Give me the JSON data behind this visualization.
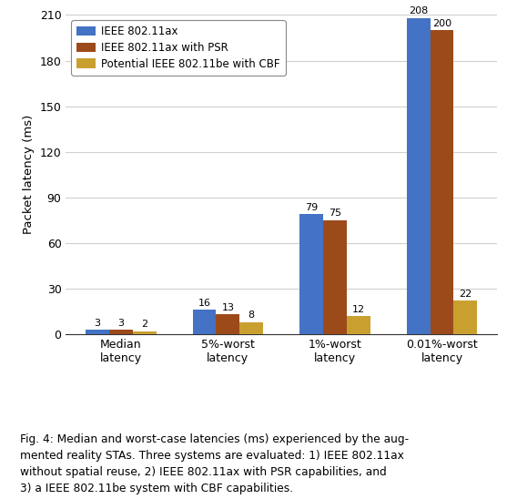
{
  "categories": [
    "Median\nlatency",
    "5%-worst\nlatency",
    "1%-worst\nlatency",
    "0.01%-worst\nlatency"
  ],
  "series": {
    "IEEE 802.11ax": [
      3,
      16,
      79,
      208
    ],
    "IEEE 802.11ax with PSR": [
      3,
      13,
      75,
      200
    ],
    "Potential IEEE 802.11be with CBF": [
      2,
      8,
      12,
      22
    ]
  },
  "colors": {
    "IEEE 802.11ax": "#4472C4",
    "IEEE 802.11ax with PSR": "#9C4A1A",
    "Potential IEEE 802.11be with CBF": "#C9A030"
  },
  "ylabel": "Packet latency (ms)",
  "ylim": [
    0,
    210
  ],
  "yticks": [
    0,
    30,
    60,
    90,
    120,
    150,
    180,
    210
  ],
  "bar_width": 0.22,
  "figsize": [
    5.57,
    5.48
  ],
  "dpi": 100,
  "grid_color": "#d0d0d0",
  "background_color": "#ffffff",
  "label_fontsize": 8.0,
  "axis_fontsize": 9.5,
  "tick_fontsize": 9.0,
  "legend_fontsize": 8.5
}
